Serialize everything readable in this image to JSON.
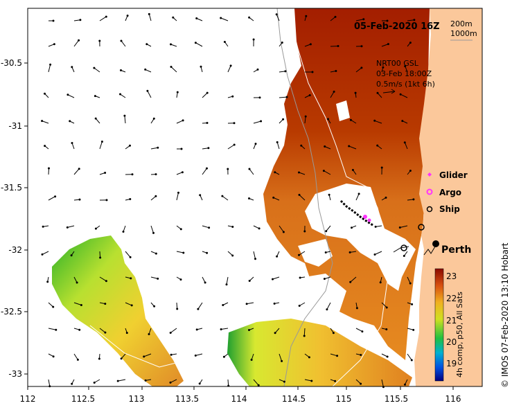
{
  "map": {
    "title": "05-Feb-2020 16Z",
    "depth_legend": [
      "200m",
      "1000m"
    ],
    "current_info": [
      "NRT00 GSL",
      "03-Feb 18:00Z",
      "0.5m/s (1kt 6h)"
    ],
    "x_ticks": [
      "112",
      "112.5",
      "113",
      "113.5",
      "114",
      "114.5",
      "115",
      "115.5",
      "116"
    ],
    "y_ticks": [
      "-30.5",
      "-31",
      "-31.5",
      "-32",
      "-32.5",
      "-33"
    ],
    "city": "Perth",
    "legend": [
      {
        "label": "Glider",
        "color": "#ff33ff",
        "symbol": "diamond"
      },
      {
        "label": "Argo",
        "color": "#ff33ff",
        "symbol": "ring"
      },
      {
        "label": "Ship",
        "color": "#000000",
        "symbol": "circle"
      }
    ],
    "colorbar": {
      "ticks": [
        "23",
        "22",
        "21",
        "20",
        "19"
      ],
      "label": "4h comp, p50, All Sats"
    },
    "credit": "© IMOS 07-Feb-2020 13:10 Hobart",
    "colors": {
      "land": "#fbc89b",
      "sst_warm": "#a01d00",
      "sst_mid": "#e0781a",
      "sst_cool": "#f0dc28",
      "sst_cold": "#22b422"
    }
  }
}
